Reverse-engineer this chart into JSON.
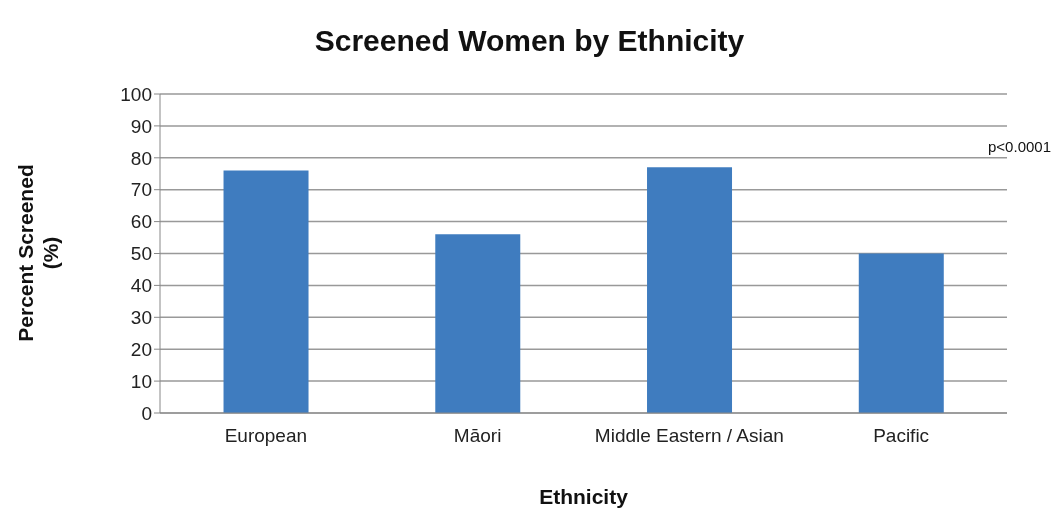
{
  "chart_data": {
    "type": "bar",
    "title": "Screened Women by Ethnicity",
    "xlabel": "Ethnicity",
    "ylabel": "Percent Screened (%)",
    "categories": [
      "European",
      "Māori",
      "Middle Eastern / Asian",
      "Pacific"
    ],
    "values": [
      76,
      56,
      77,
      50
    ],
    "color": "#3f7cbf",
    "ylim": [
      0,
      100
    ],
    "yticks": [
      0,
      10,
      20,
      30,
      40,
      50,
      60,
      70,
      80,
      90,
      100
    ],
    "grid": "y",
    "annotations": [
      "p<0.0001"
    ]
  }
}
